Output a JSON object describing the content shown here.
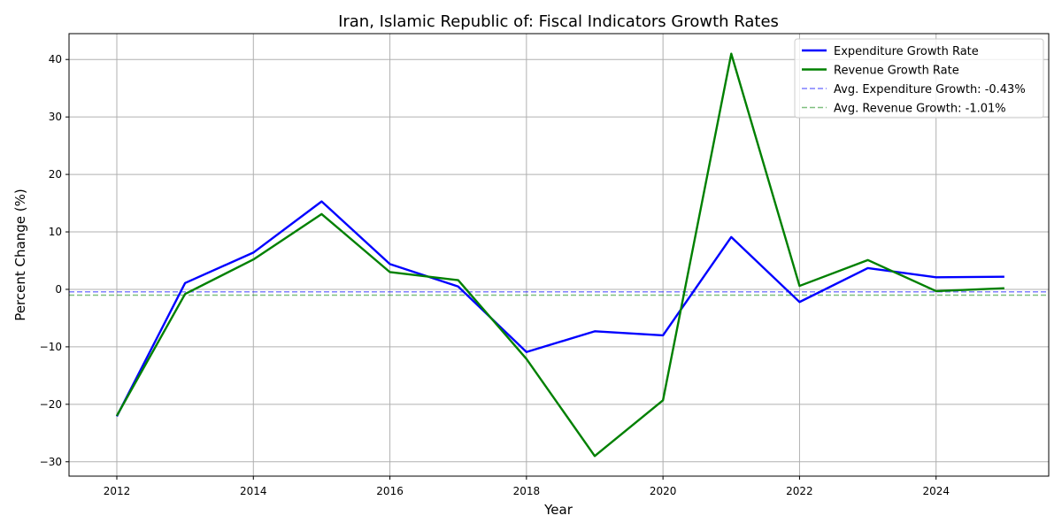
{
  "chart_data": {
    "type": "line",
    "title": "Iran, Islamic Republic of: Fiscal Indicators Growth Rates",
    "xlabel": "Year",
    "ylabel": "Percent Change (%)",
    "xlim": [
      2011.3,
      2025.65
    ],
    "ylim": [
      -32.5,
      44.5
    ],
    "x_ticks": [
      2012,
      2014,
      2016,
      2018,
      2020,
      2022,
      2024
    ],
    "y_ticks": [
      -30,
      -20,
      -10,
      0,
      10,
      20,
      30,
      40
    ],
    "y_tick_labels": [
      "−30",
      "−20",
      "−10",
      "0",
      "10",
      "20",
      "30",
      "40"
    ],
    "grid": true,
    "legend_position": "top-right",
    "x": [
      2012,
      2013,
      2014,
      2015,
      2016,
      2017,
      2018,
      2019,
      2020,
      2021,
      2022,
      2023,
      2024,
      2025
    ],
    "series": [
      {
        "name": "Expenditure Growth Rate",
        "color": "#0000ff",
        "style": "solid",
        "values": [
          -22.1,
          1.1,
          6.4,
          15.3,
          4.4,
          0.5,
          -10.9,
          -7.3,
          -8.0,
          9.1,
          -2.2,
          3.7,
          2.1,
          2.2
        ]
      },
      {
        "name": "Revenue Growth Rate",
        "color": "#008000",
        "style": "solid",
        "values": [
          -22.0,
          -0.8,
          5.2,
          13.1,
          3.0,
          1.6,
          -12.1,
          -29.0,
          -19.3,
          41.0,
          0.6,
          5.1,
          -0.3,
          0.2
        ]
      }
    ],
    "reference_lines": [
      {
        "name": "Avg. Expenditure Growth: -0.43%",
        "value": -0.43,
        "color": "#0000ff",
        "style": "dashed"
      },
      {
        "name": "Avg. Revenue Growth: -1.01%",
        "value": -1.01,
        "color": "#008000",
        "style": "dashed"
      }
    ]
  }
}
